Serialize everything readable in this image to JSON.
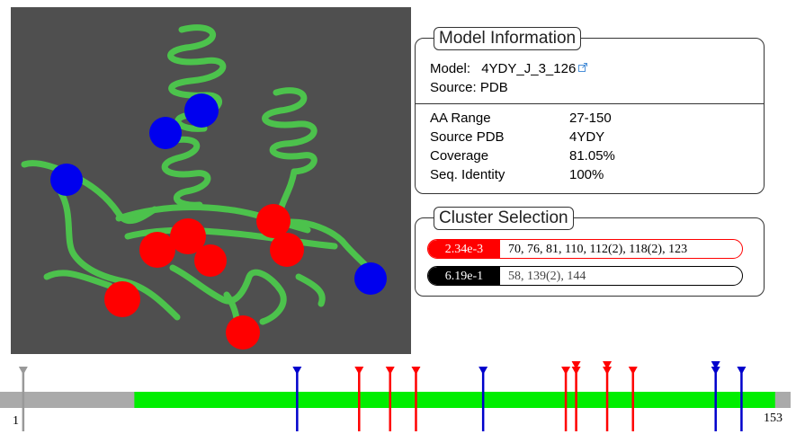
{
  "model_info": {
    "title": "Model Information",
    "model_label": "Model:",
    "model_value": "4YDY_J_3_126",
    "link_icon": "external-link-icon",
    "source_label": "Source:",
    "source_value": "PDB",
    "fields": [
      {
        "label": "AA Range",
        "value": "27-150"
      },
      {
        "label": "Source PDB",
        "value": "4YDY"
      },
      {
        "label": "Coverage",
        "value": "81.05%"
      },
      {
        "label": "Seq. Identity",
        "value": "100%"
      }
    ]
  },
  "cluster_selection": {
    "title": "Cluster Selection",
    "clusters": [
      {
        "pvalue": "2.34e-3",
        "residues": "70, 76, 81, 110, 112(2), 118(2), 123",
        "color": "#ff0000",
        "selected": true
      },
      {
        "pvalue": "6.19e-1",
        "residues": "58, 139(2), 144",
        "color": "#000000",
        "selected": false
      }
    ]
  },
  "viewer": {
    "background": "#4f4f4f",
    "ribbon_color": "#4cc94c",
    "colors": {
      "red_sphere": "#ff0000",
      "blue_sphere": "#0000ee"
    }
  },
  "sequence_track": {
    "start_label": "1",
    "end_label": "153",
    "length": 153,
    "covered_range": [
      27,
      150
    ],
    "colors": {
      "covered": "#00ee00",
      "uncovered": "#aaaaaa",
      "red": "#ff0000",
      "blue": "#0000cc",
      "gray": "#999999"
    },
    "markers": [
      {
        "pos": 5,
        "color": "gray",
        "stack": 1
      },
      {
        "pos": 58,
        "color": "blue",
        "stack": 1
      },
      {
        "pos": 70,
        "color": "red",
        "stack": 1
      },
      {
        "pos": 76,
        "color": "red",
        "stack": 1
      },
      {
        "pos": 81,
        "color": "red",
        "stack": 1
      },
      {
        "pos": 94,
        "color": "blue",
        "stack": 1
      },
      {
        "pos": 110,
        "color": "red",
        "stack": 1
      },
      {
        "pos": 112,
        "color": "red",
        "stack": 2
      },
      {
        "pos": 118,
        "color": "red",
        "stack": 2
      },
      {
        "pos": 123,
        "color": "red",
        "stack": 1
      },
      {
        "pos": 139,
        "color": "blue",
        "stack": 2
      },
      {
        "pos": 144,
        "color": "blue",
        "stack": 1
      }
    ]
  }
}
